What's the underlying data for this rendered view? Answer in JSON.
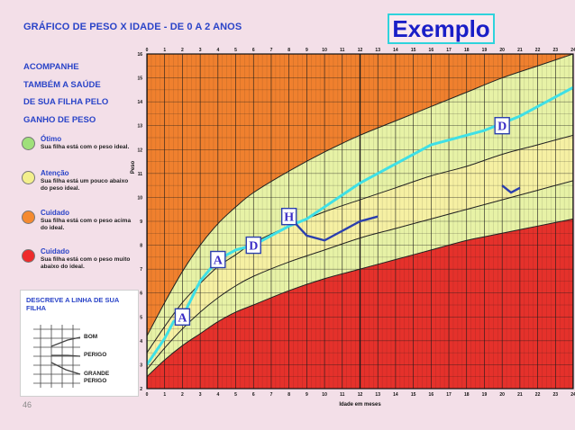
{
  "page": {
    "title": "GRÁFICO DE PESO X IDADE - DE 0 A 2 ANOS",
    "badge": "Exemplo",
    "intro": [
      "ACOMPANHE",
      "TAMBÉM A SAÚDE",
      "DE SUA FILHA PELO",
      "GANHO DE PESO"
    ],
    "page_number": "46"
  },
  "legend": [
    {
      "title": "Ótimo",
      "text": "Sua filha está com o peso ideal.",
      "color": "#9fe07a"
    },
    {
      "title": "Atenção",
      "text": "Sua filha está um pouco abaixo do peso ideal.",
      "color": "#f3ef8c"
    },
    {
      "title": "Cuidado",
      "text": "Sua filha está com o peso acima do ideal.",
      "color": "#f58a2f"
    },
    {
      "title": "Cuidado",
      "text": "Sua filha está com o peso muito abaixo do ideal.",
      "color": "#ee2b2b"
    }
  ],
  "line_box": {
    "title": "DESCREVE A LINHA DE SUA FILHA",
    "labels": [
      "BOM",
      "PERIGO",
      "GRANDE PERIGO"
    ]
  },
  "colors": {
    "over": "#f0802e",
    "attention": "#f6f0a3",
    "optimal": "#e7f2a6",
    "danger": "#e5312b",
    "child_line": "#3fe0e6",
    "event_line": "#2b3fae",
    "grid": "#1a1a1a"
  },
  "chart_data": {
    "type": "line",
    "x_label": "Idade em meses",
    "y_label": "Peso",
    "xlim": [
      0,
      24
    ],
    "ylim": [
      2,
      16
    ],
    "x_ticks": [
      "0",
      "1",
      "2",
      "3",
      "4",
      "5",
      "6",
      "7",
      "8",
      "9",
      "10",
      "11",
      "12",
      "13",
      "14",
      "15",
      "16",
      "17",
      "18",
      "19",
      "20",
      "21",
      "22",
      "23",
      "24"
    ],
    "y_ticks": [
      "2",
      "3",
      "4",
      "5",
      "6",
      "7",
      "8",
      "9",
      "10",
      "11",
      "12",
      "13",
      "14",
      "15",
      "16"
    ],
    "bands": {
      "upper": [
        [
          0,
          4.2
        ],
        [
          1,
          5.6
        ],
        [
          2,
          6.9
        ],
        [
          3,
          8.0
        ],
        [
          4,
          8.9
        ],
        [
          5,
          9.6
        ],
        [
          6,
          10.2
        ],
        [
          8,
          11.1
        ],
        [
          10,
          11.9
        ],
        [
          12,
          12.6
        ],
        [
          14,
          13.2
        ],
        [
          16,
          13.8
        ],
        [
          18,
          14.4
        ],
        [
          20,
          15.0
        ],
        [
          22,
          15.5
        ],
        [
          24,
          16.0
        ]
      ],
      "mid_upper": [
        [
          0,
          3.5
        ],
        [
          1,
          4.6
        ],
        [
          2,
          5.6
        ],
        [
          3,
          6.4
        ],
        [
          4,
          7.1
        ],
        [
          5,
          7.6
        ],
        [
          6,
          8.1
        ],
        [
          8,
          8.8
        ],
        [
          10,
          9.4
        ],
        [
          12,
          9.9
        ],
        [
          14,
          10.4
        ],
        [
          16,
          10.9
        ],
        [
          18,
          11.3
        ],
        [
          20,
          11.8
        ],
        [
          22,
          12.2
        ],
        [
          24,
          12.6
        ]
      ],
      "mid_lower": [
        [
          0,
          2.8
        ],
        [
          1,
          3.7
        ],
        [
          2,
          4.5
        ],
        [
          3,
          5.2
        ],
        [
          4,
          5.8
        ],
        [
          5,
          6.3
        ],
        [
          6,
          6.7
        ],
        [
          8,
          7.3
        ],
        [
          10,
          7.8
        ],
        [
          12,
          8.3
        ],
        [
          14,
          8.7
        ],
        [
          16,
          9.1
        ],
        [
          18,
          9.5
        ],
        [
          20,
          9.9
        ],
        [
          22,
          10.3
        ],
        [
          24,
          10.7
        ]
      ],
      "lower": [
        [
          0,
          2.5
        ],
        [
          1,
          3.2
        ],
        [
          2,
          3.8
        ],
        [
          3,
          4.3
        ],
        [
          4,
          4.8
        ],
        [
          5,
          5.2
        ],
        [
          6,
          5.5
        ],
        [
          8,
          6.1
        ],
        [
          10,
          6.6
        ],
        [
          12,
          7.0
        ],
        [
          14,
          7.4
        ],
        [
          16,
          7.8
        ],
        [
          18,
          8.2
        ],
        [
          20,
          8.5
        ],
        [
          22,
          8.8
        ],
        [
          24,
          9.1
        ]
      ]
    },
    "series": [
      {
        "values": [
          [
            0,
            3.0
          ],
          [
            1,
            4.1
          ],
          [
            1.5,
            4.8
          ],
          [
            2,
            5.0
          ],
          [
            3,
            6.5
          ],
          [
            4,
            7.4
          ],
          [
            5,
            7.8
          ],
          [
            6,
            8.0
          ],
          [
            7,
            8.4
          ],
          [
            8,
            8.8
          ],
          [
            9,
            9.1
          ],
          [
            10,
            9.6
          ],
          [
            11,
            10.1
          ],
          [
            12,
            10.6
          ],
          [
            13,
            11.0
          ],
          [
            14,
            11.4
          ],
          [
            15,
            11.8
          ],
          [
            16,
            12.2
          ],
          [
            17,
            12.4
          ],
          [
            18,
            12.6
          ],
          [
            19,
            12.8
          ],
          [
            20,
            13.1
          ],
          [
            21,
            13.4
          ],
          [
            22,
            13.8
          ],
          [
            23,
            14.2
          ],
          [
            24,
            14.6
          ]
        ]
      },
      {
        "values": [
          [
            8,
            9.2
          ],
          [
            9,
            8.4
          ],
          [
            10,
            8.2
          ],
          [
            11,
            8.6
          ],
          [
            12,
            9.0
          ],
          [
            13,
            9.2
          ]
        ]
      },
      {
        "values": [
          [
            20,
            10.5
          ],
          [
            20.5,
            10.2
          ],
          [
            21,
            10.4
          ]
        ]
      }
    ],
    "annotations": [
      {
        "label": "A",
        "x": 2.0,
        "y": 5.0
      },
      {
        "label": "A",
        "x": 4.0,
        "y": 7.4
      },
      {
        "label": "D",
        "x": 6.0,
        "y": 8.0
      },
      {
        "label": "H",
        "x": 8.0,
        "y": 9.2
      },
      {
        "label": "D",
        "x": 20.0,
        "y": 13.0
      }
    ]
  }
}
